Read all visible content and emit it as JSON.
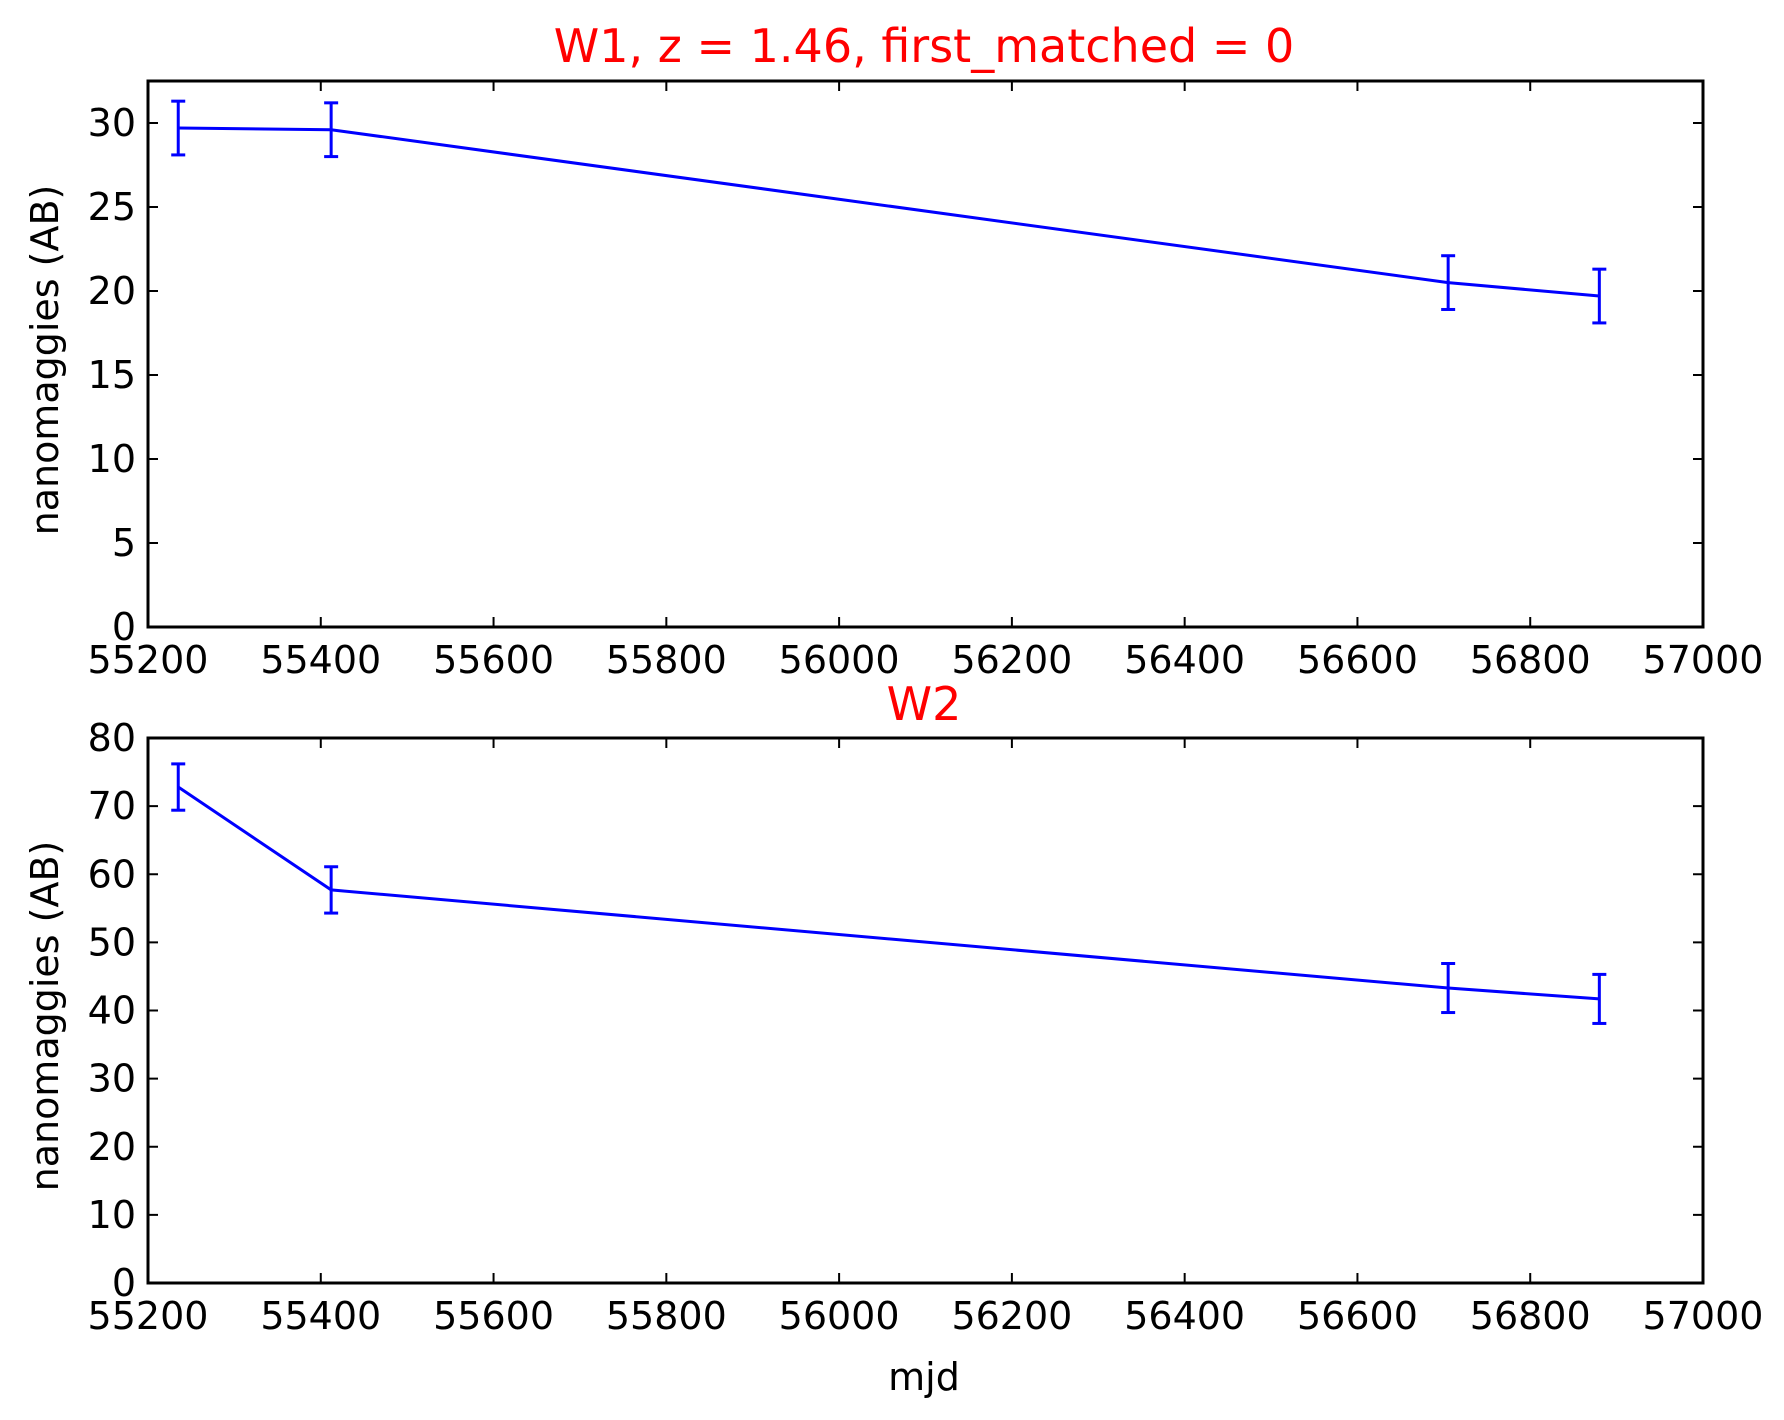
{
  "chart_data": [
    {
      "type": "line",
      "title": "W1, z = 1.46, first_matched = 0",
      "xlabel": "",
      "ylabel": "nanomaggies (AB)",
      "xlim": [
        55200,
        57000
      ],
      "ylim": [
        0,
        32.5
      ],
      "xticks": [
        55200,
        55400,
        55600,
        55800,
        56000,
        56200,
        56400,
        56600,
        56800,
        57000
      ],
      "yticks": [
        0,
        5,
        10,
        15,
        20,
        25,
        30
      ],
      "xtick_labels": [
        "55200",
        "55400",
        "55600",
        "55800",
        "56000",
        "56200",
        "56400",
        "56600",
        "56800",
        "57000"
      ],
      "ytick_labels": [
        "0",
        "5",
        "10",
        "15",
        "20",
        "25",
        "30"
      ],
      "grid": false,
      "color": "#0000ff",
      "title_color": "#ff0000",
      "series": [
        {
          "x": [
            55235,
            55412,
            56705,
            56880
          ],
          "y": [
            29.7,
            29.6,
            20.5,
            19.7
          ],
          "yerr": [
            1.6,
            1.6,
            1.6,
            1.6
          ]
        }
      ]
    },
    {
      "type": "line",
      "title": "W2",
      "xlabel": "mjd",
      "ylabel": "nanomaggies (AB)",
      "xlim": [
        55200,
        57000
      ],
      "ylim": [
        0,
        80
      ],
      "xticks": [
        55200,
        55400,
        55600,
        55800,
        56000,
        56200,
        56400,
        56600,
        56800,
        57000
      ],
      "yticks": [
        0,
        10,
        20,
        30,
        40,
        50,
        60,
        70,
        80
      ],
      "xtick_labels": [
        "55200",
        "55400",
        "55600",
        "55800",
        "56000",
        "56200",
        "56400",
        "56600",
        "56800",
        "57000"
      ],
      "ytick_labels": [
        "0",
        "10",
        "20",
        "30",
        "40",
        "50",
        "60",
        "70",
        "80"
      ],
      "grid": false,
      "color": "#0000ff",
      "title_color": "#ff0000",
      "series": [
        {
          "x": [
            55235,
            55412,
            56705,
            56880
          ],
          "y": [
            72.8,
            57.7,
            43.3,
            41.7
          ],
          "yerr": [
            3.4,
            3.4,
            3.6,
            3.6
          ]
        }
      ]
    }
  ]
}
